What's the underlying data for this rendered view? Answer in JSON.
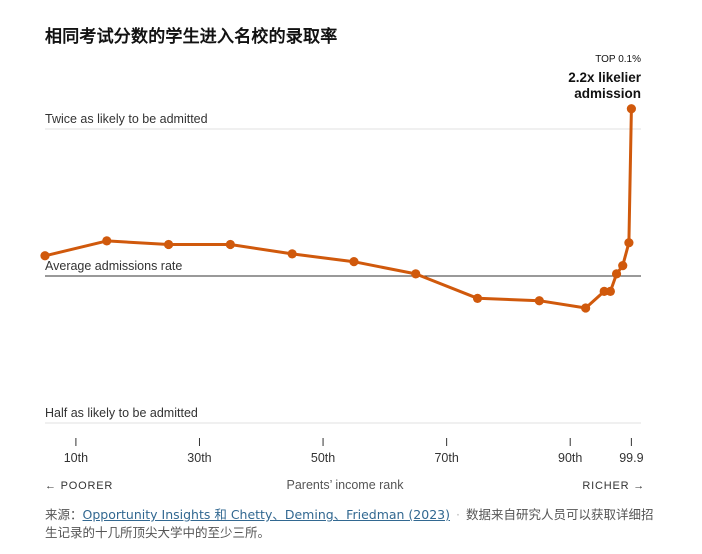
{
  "title": "相同考试分数的学生进入名校的录取率",
  "colors": {
    "line": "#d0590c",
    "grid": "#e2e2e2",
    "baseline": "#333333",
    "text": "#121212"
  },
  "chart_data": {
    "type": "line",
    "x_ticks": [
      10,
      30,
      50,
      70,
      90,
      99.9
    ],
    "x_tick_labels": [
      "10th",
      "30th",
      "50th",
      "70th",
      "90th",
      "99.9"
    ],
    "xlim": [
      5,
      100
    ],
    "ylim": [
      0.5,
      2.0
    ],
    "y_scale": "log",
    "reference_lines": [
      {
        "value": 2.0,
        "label": "Twice as likely to be admitted"
      },
      {
        "value": 1.0,
        "label": "Average admissions rate"
      },
      {
        "value": 0.5,
        "label": "Half as likely to be admitted"
      }
    ],
    "xlabel": "Parents’ income rank",
    "left_label": "← POORER",
    "right_label": "RICHER →",
    "annotation": {
      "small": "TOP 0.1%",
      "line1": "2.2x likelier",
      "line2": "admission"
    },
    "points": [
      {
        "x": 5,
        "y": 1.1
      },
      {
        "x": 15,
        "y": 1.18
      },
      {
        "x": 25,
        "y": 1.16
      },
      {
        "x": 35,
        "y": 1.16
      },
      {
        "x": 45,
        "y": 1.11
      },
      {
        "x": 55,
        "y": 1.07
      },
      {
        "x": 65,
        "y": 1.01
      },
      {
        "x": 75,
        "y": 0.9
      },
      {
        "x": 85,
        "y": 0.89
      },
      {
        "x": 92.5,
        "y": 0.86
      },
      {
        "x": 95.5,
        "y": 0.93
      },
      {
        "x": 96.5,
        "y": 0.93
      },
      {
        "x": 97.5,
        "y": 1.01
      },
      {
        "x": 98.5,
        "y": 1.05
      },
      {
        "x": 99.5,
        "y": 1.17
      },
      {
        "x": 99.9,
        "y": 2.2
      }
    ]
  },
  "source": {
    "prefix": "来源：",
    "link_text": "Opportunity Insights 和 Chetty、Deming、Friedman (2023)",
    "separator": "·",
    "note": "数据来自研究人员可以获取详细招生记录的十几所顶尖大学中的至少三所。"
  }
}
